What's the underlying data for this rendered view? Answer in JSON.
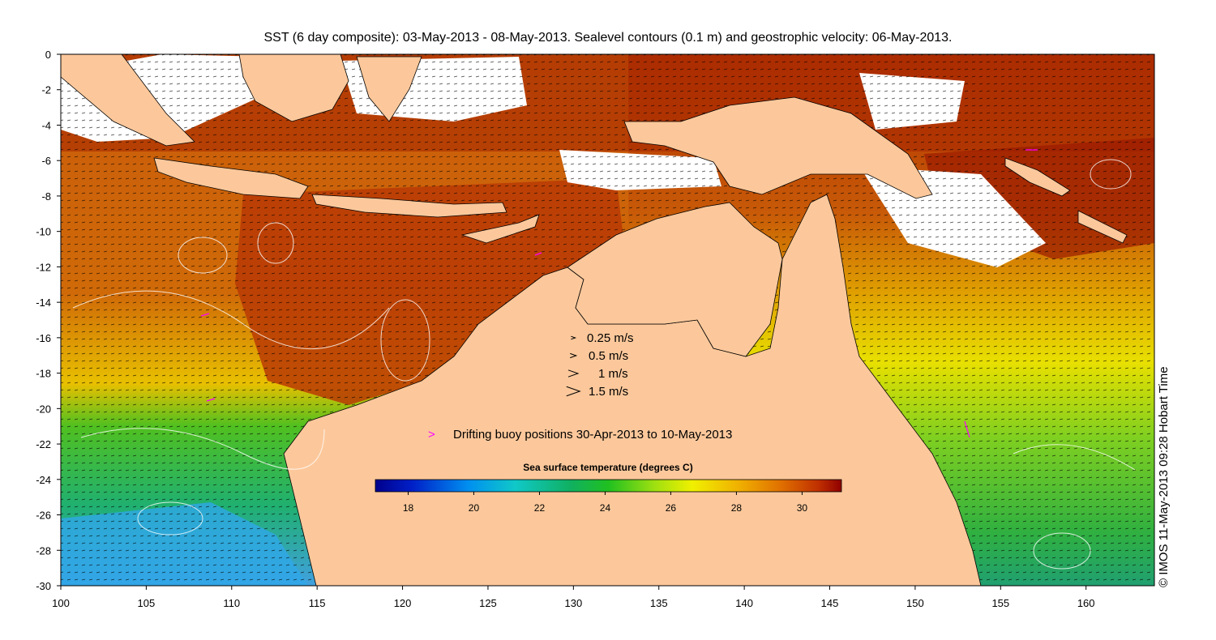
{
  "title": "SST (6 day composite): 03-May-2013 - 08-May-2013. Sealevel contours (0.1 m) and geostrophic velocity: 06-May-2013.",
  "axes": {
    "x_ticks": [
      100,
      105,
      110,
      115,
      120,
      125,
      130,
      135,
      140,
      145,
      150,
      155,
      160
    ],
    "y_ticks": [
      0,
      -2,
      -4,
      -6,
      -8,
      -10,
      -12,
      -14,
      -16,
      -18,
      -20,
      -22,
      -24,
      -26,
      -28,
      -30
    ],
    "xlim": [
      100,
      164
    ],
    "ylim": [
      -30,
      0
    ]
  },
  "velocity_legend": [
    {
      "label": "0.25 m/s",
      "speed": 0.25
    },
    {
      "label": "0.5 m/s",
      "speed": 0.5
    },
    {
      "label": "1 m/s",
      "speed": 1
    },
    {
      "label": "1.5 m/s",
      "speed": 1.5
    }
  ],
  "buoy_legend": {
    "symbol": ">",
    "label": "Drifting buoy positions 30-Apr-2013 to 10-May-2013",
    "color": "#ff00ff"
  },
  "colorbar": {
    "title": "Sea surface temperature (degrees C)",
    "min": 17,
    "max": 31.2,
    "ticks": [
      "18",
      "20",
      "22",
      "24",
      "26",
      "28",
      "30"
    ],
    "tick_values": [
      18,
      20,
      22,
      24,
      26,
      28,
      30
    ]
  },
  "credit": "© IMOS 11-May-2013 09:28 Hobart Time",
  "colors": {
    "land": "#fcc89b",
    "coast": "#000000",
    "contour": "#ffffff",
    "vector": "#000000"
  }
}
